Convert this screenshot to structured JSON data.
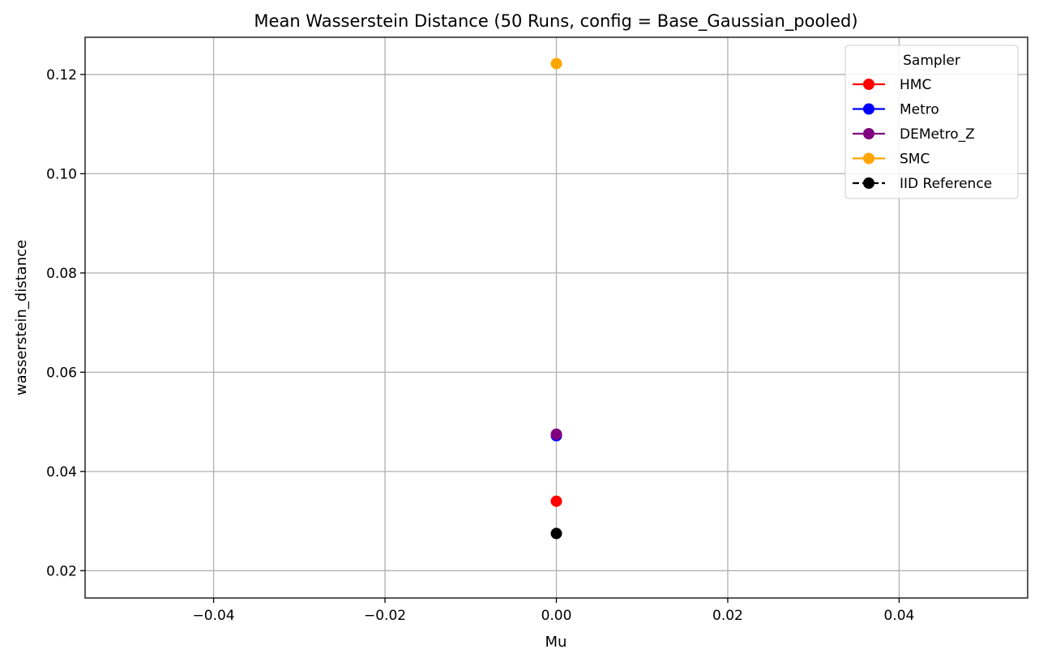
{
  "chart_data": {
    "type": "scatter",
    "title": "Mean Wasserstein Distance (50 Runs, config = Base_Gaussian_pooled)",
    "xlabel": "Mu",
    "ylabel": "wasserstein_distance",
    "xlim": [
      -0.055,
      0.055
    ],
    "ylim": [
      0.0145,
      0.1275
    ],
    "xticks": [
      -0.04,
      -0.02,
      0.0,
      0.02,
      0.04
    ],
    "xtick_labels": [
      "−0.04",
      "−0.02",
      "0.00",
      "0.02",
      "0.04"
    ],
    "yticks": [
      0.02,
      0.04,
      0.06,
      0.08,
      0.1,
      0.12
    ],
    "ytick_labels": [
      "0.02",
      "0.04",
      "0.06",
      "0.08",
      "0.10",
      "0.12"
    ],
    "grid": true,
    "legend": {
      "title": "Sampler",
      "placement": "top-right"
    },
    "series": [
      {
        "name": "HMC",
        "color": "#ff0000",
        "linestyle": "solid",
        "points": [
          {
            "x": 0.0,
            "y": 0.034
          }
        ]
      },
      {
        "name": "Metro",
        "color": "#0000ff",
        "linestyle": "solid",
        "points": [
          {
            "x": 0.0,
            "y": 0.0472
          }
        ]
      },
      {
        "name": "DEMetro_Z",
        "color": "#800080",
        "linestyle": "solid",
        "points": [
          {
            "x": 0.0,
            "y": 0.0475
          }
        ]
      },
      {
        "name": "SMC",
        "color": "#ffa500",
        "linestyle": "solid",
        "points": [
          {
            "x": 0.0,
            "y": 0.1222
          }
        ]
      },
      {
        "name": "IID Reference",
        "color": "#000000",
        "linestyle": "dashed",
        "points": [
          {
            "x": 0.0,
            "y": 0.0275
          }
        ]
      }
    ]
  }
}
